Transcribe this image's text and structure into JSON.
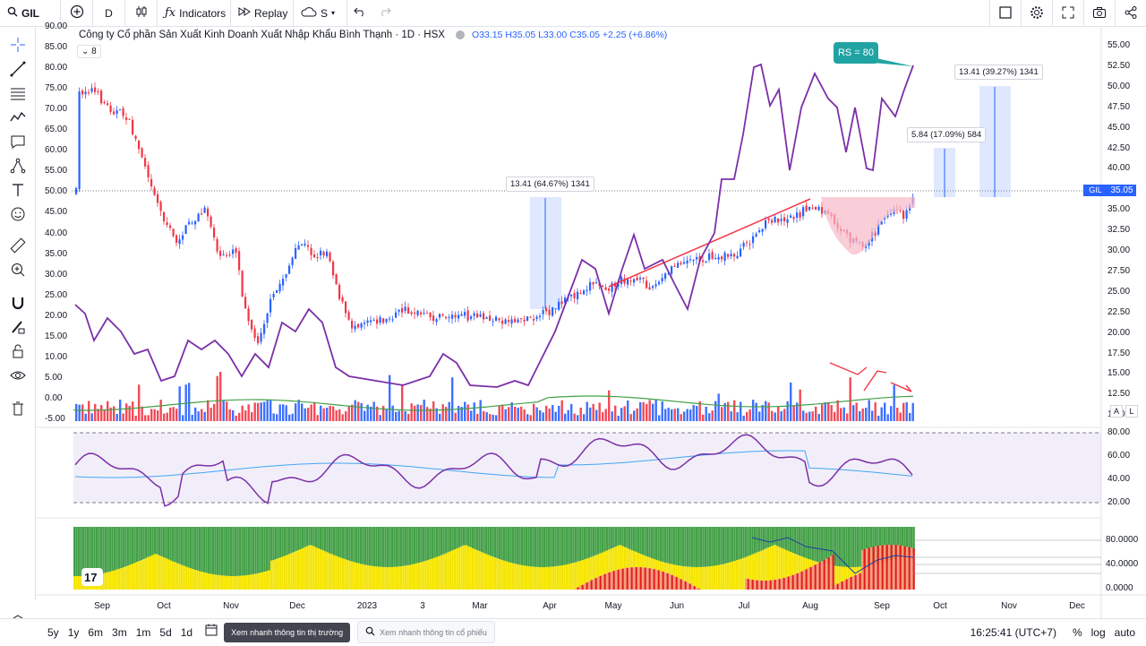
{
  "topbar": {
    "symbol": "GIL",
    "interval": "D",
    "indicators_label": "Indicators",
    "replay_label": "Replay",
    "cloud_label": "S"
  },
  "legend": {
    "title": "Công ty Cổ phần Sản Xuất Kinh Doanh Xuất Nhập Khẩu Bình Thạnh · 1D · HSX",
    "open": "O33.15",
    "high": "H35.05",
    "low": "L33.00",
    "close": "C35.05",
    "change": "+2.25 (+6.86%)",
    "collapsed_count": "8"
  },
  "left_axis": [
    "90.00",
    "85.00",
    "80.00",
    "75.00",
    "70.00",
    "65.00",
    "60.00",
    "55.00",
    "50.00",
    "45.00",
    "40.00",
    "35.00",
    "30.00",
    "25.00",
    "20.00",
    "15.00",
    "10.00",
    "5.00",
    "0.00",
    "-5.00"
  ],
  "right_axis": [
    "55.00",
    "52.50",
    "50.00",
    "47.50",
    "45.00",
    "42.50",
    "40.00",
    "37.50",
    "35.00",
    "32.50",
    "30.00",
    "27.50",
    "25.00",
    "22.50",
    "20.00",
    "17.50",
    "15.00",
    "12.50",
    "10.00"
  ],
  "price_tag": {
    "symbol": "GIL",
    "value": "35.05"
  },
  "rs_callout": "RS = 80",
  "measures": [
    {
      "text": "13.41 (64.67%) 1341"
    },
    {
      "text": "5.84 (17.09%) 584"
    },
    {
      "text": "13.41 (39.27%) 1341"
    }
  ],
  "rsi_axis": [
    "80.00",
    "60.00",
    "40.00",
    "20.00"
  ],
  "bottom_axis": [
    "80.0000",
    "40.0000",
    "0.0000"
  ],
  "time_axis": [
    "Sep",
    "Oct",
    "Nov",
    "Dec",
    "2023",
    "3",
    "Mar",
    "Apr",
    "May",
    "Jun",
    "Jul",
    "Aug",
    "Sep",
    "Oct",
    "Nov",
    "Dec"
  ],
  "scale_buttons": {
    "a": "A",
    "l": "L"
  },
  "bottombar": {
    "ranges": [
      "5y",
      "1y",
      "6m",
      "3m",
      "1m",
      "5d",
      "1d"
    ],
    "market_btn": "Xem nhanh thông tin thị trường",
    "stock_search": "Xem nhanh thông tin cổ phiếu",
    "clock": "16:25:41 (UTC+7)",
    "percent": "%",
    "log": "log",
    "auto": "auto"
  },
  "colors": {
    "up": "#2862ff",
    "down": "#f23645",
    "rs_line": "#7b2fa8",
    "accent": "#2862ff"
  }
}
